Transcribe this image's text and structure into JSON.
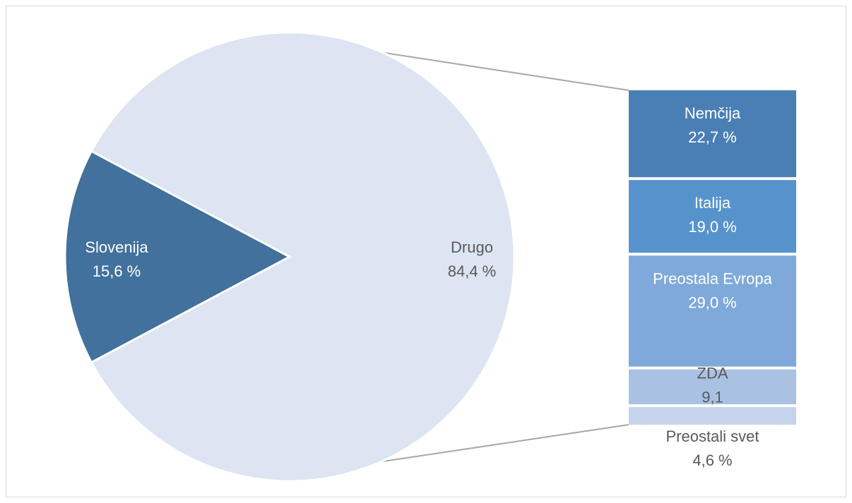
{
  "chart_data": {
    "type": "bar-of-pie",
    "pie": {
      "slices": [
        {
          "name": "Slovenija",
          "value": 15.6,
          "label": "15,6 %",
          "color": "#41719c"
        },
        {
          "name": "Drugo",
          "value": 84.4,
          "label": "84,4 %",
          "color": "#dde4f2"
        }
      ]
    },
    "bar": {
      "parent": "Drugo",
      "segments": [
        {
          "name": "Nemčija",
          "value": 22.7,
          "label": "22,7 %",
          "color": "#4a7fb5",
          "text_color": "#ffffff"
        },
        {
          "name": "Italija",
          "value": 19.0,
          "label": "19,0 %",
          "color": "#5693cc",
          "text_color": "#ffffff"
        },
        {
          "name": "Preostala Evropa",
          "value": 29.0,
          "label": "29,0 %",
          "color": "#7ea9da",
          "text_color": "#ffffff"
        },
        {
          "name": "ZDA",
          "value": 9.1,
          "label": "9,1",
          "color": "#a9c2e3",
          "text_color": "#595959"
        },
        {
          "name": "Preostali svet",
          "value": 4.6,
          "label": "4,6 %",
          "color": "#c5d4ec",
          "text_color": "#595959"
        }
      ]
    },
    "label_colors": {
      "slovenija": "#ffffff",
      "drugo": "#595959"
    },
    "connector_color": "#a6a6a6"
  }
}
